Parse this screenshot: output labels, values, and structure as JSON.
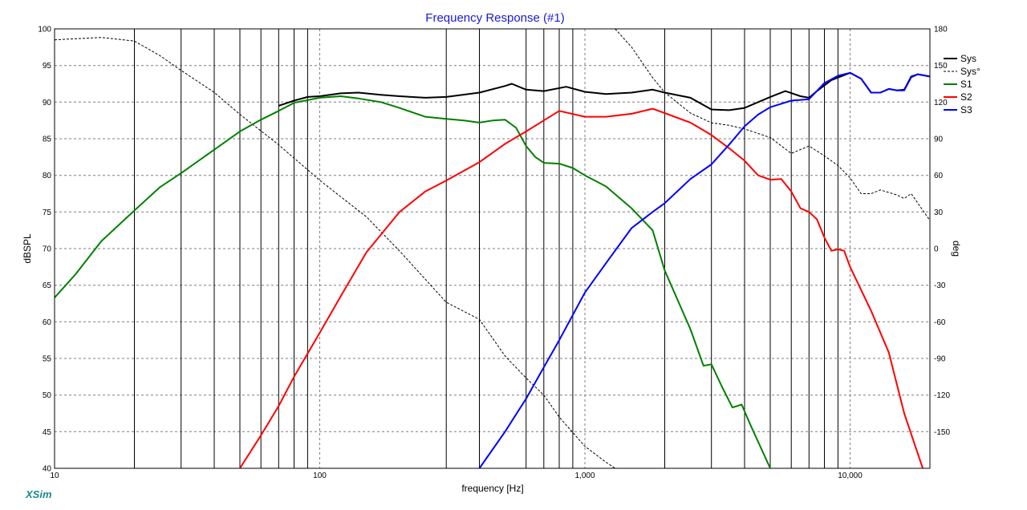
{
  "chart_data": {
    "type": "line",
    "title": "Frequency Response (#1)",
    "xlabel": "frequency [Hz]",
    "ylabel_left": "dBSPL",
    "ylabel_right": "deg",
    "x_scale": "log",
    "xlim": [
      10,
      20000
    ],
    "ylim_left": [
      40,
      100
    ],
    "ylim_right": [
      -180,
      180
    ],
    "grid": true,
    "legend_position": "top-right",
    "x_tick_labels": [
      {
        "value": 10,
        "label": "10"
      },
      {
        "value": 100,
        "label": "100"
      },
      {
        "value": 1000,
        "label": "1,000"
      },
      {
        "value": 10000,
        "label": "10,000"
      }
    ],
    "y_left_ticks": [
      40,
      45,
      50,
      55,
      60,
      65,
      70,
      75,
      80,
      85,
      90,
      95,
      100
    ],
    "y_right_ticks": [
      -150,
      -120,
      -90,
      -60,
      -30,
      0,
      30,
      60,
      90,
      120,
      150,
      180
    ],
    "marker_lines_hz": [
      20,
      30,
      40,
      50,
      60,
      70,
      80,
      90,
      300,
      400,
      600,
      700,
      800,
      900,
      2000,
      3000,
      4000,
      5000,
      6000,
      7000,
      8000,
      9000
    ],
    "series": [
      {
        "name": "Sys",
        "color": "#000000",
        "style": "solid",
        "axis": "left",
        "points": [
          [
            70,
            89.5
          ],
          [
            80,
            90.2
          ],
          [
            90,
            90.7
          ],
          [
            100,
            90.8
          ],
          [
            120,
            91.2
          ],
          [
            140,
            91.3
          ],
          [
            170,
            91.0
          ],
          [
            200,
            90.8
          ],
          [
            250,
            90.6
          ],
          [
            300,
            90.7
          ],
          [
            400,
            91.3
          ],
          [
            500,
            92.2
          ],
          [
            530,
            92.5
          ],
          [
            600,
            91.7
          ],
          [
            700,
            91.5
          ],
          [
            850,
            92.1
          ],
          [
            1000,
            91.4
          ],
          [
            1200,
            91.1
          ],
          [
            1500,
            91.3
          ],
          [
            1800,
            91.7
          ],
          [
            2000,
            91.3
          ],
          [
            2500,
            90.6
          ],
          [
            3000,
            89.0
          ],
          [
            3500,
            88.9
          ],
          [
            4000,
            89.2
          ],
          [
            5000,
            90.7
          ],
          [
            5700,
            91.5
          ],
          [
            6500,
            90.8
          ],
          [
            7000,
            90.6
          ],
          [
            7500,
            91.5
          ],
          [
            8500,
            93.0
          ],
          [
            10000,
            94.0
          ],
          [
            11000,
            93.2
          ],
          [
            12000,
            91.3
          ],
          [
            13000,
            91.3
          ],
          [
            14000,
            91.8
          ],
          [
            15000,
            91.6
          ],
          [
            16000,
            91.7
          ],
          [
            17000,
            93.5
          ],
          [
            18000,
            93.8
          ],
          [
            20000,
            93.5
          ]
        ]
      },
      {
        "name": "Sys°",
        "color": "#000000",
        "style": "dashed",
        "axis": "right",
        "points": [
          [
            10,
            171
          ],
          [
            15,
            173
          ],
          [
            20,
            170
          ],
          [
            25,
            158
          ],
          [
            30,
            146
          ],
          [
            40,
            128
          ],
          [
            50,
            110
          ],
          [
            70,
            85
          ],
          [
            100,
            56
          ],
          [
            150,
            26
          ],
          [
            200,
            -2
          ],
          [
            300,
            -44
          ],
          [
            400,
            -58
          ],
          [
            500,
            -88
          ],
          [
            600,
            -106
          ],
          [
            700,
            -120
          ],
          [
            800,
            -138
          ],
          [
            1000,
            -162
          ],
          [
            1200,
            -175
          ],
          [
            1300,
            -180
          ],
          [
            1300,
            180
          ],
          [
            1500,
            165
          ],
          [
            1800,
            140
          ],
          [
            2000,
            128
          ],
          [
            2500,
            111
          ],
          [
            3000,
            103
          ],
          [
            3500,
            101
          ],
          [
            4000,
            98
          ],
          [
            5000,
            91
          ],
          [
            6000,
            78
          ],
          [
            7000,
            84
          ],
          [
            8000,
            76
          ],
          [
            9000,
            68
          ],
          [
            10000,
            58
          ],
          [
            11000,
            45
          ],
          [
            12000,
            45
          ],
          [
            13000,
            48
          ],
          [
            15000,
            44
          ],
          [
            16000,
            41
          ],
          [
            17000,
            45
          ],
          [
            20000,
            23
          ]
        ]
      },
      {
        "name": "S1",
        "color": "#008000",
        "style": "solid",
        "axis": "left",
        "points": [
          [
            10,
            63.3
          ],
          [
            12,
            66.5
          ],
          [
            15,
            71.0
          ],
          [
            20,
            75.2
          ],
          [
            25,
            78.4
          ],
          [
            30,
            80.3
          ],
          [
            40,
            83.5
          ],
          [
            50,
            86.0
          ],
          [
            60,
            87.6
          ],
          [
            70,
            88.8
          ],
          [
            80,
            89.9
          ],
          [
            100,
            90.6
          ],
          [
            120,
            90.8
          ],
          [
            140,
            90.5
          ],
          [
            170,
            90.0
          ],
          [
            200,
            89.2
          ],
          [
            250,
            88.0
          ],
          [
            300,
            87.7
          ],
          [
            350,
            87.5
          ],
          [
            400,
            87.2
          ],
          [
            450,
            87.5
          ],
          [
            500,
            87.6
          ],
          [
            550,
            86.5
          ],
          [
            600,
            84.0
          ],
          [
            650,
            82.5
          ],
          [
            700,
            81.7
          ],
          [
            800,
            81.6
          ],
          [
            900,
            81.0
          ],
          [
            1000,
            80.0
          ],
          [
            1200,
            78.5
          ],
          [
            1500,
            75.5
          ],
          [
            1800,
            72.5
          ],
          [
            2000,
            67.0
          ],
          [
            2500,
            59.0
          ],
          [
            2800,
            54.0
          ],
          [
            3000,
            54.2
          ],
          [
            3300,
            51.0
          ],
          [
            3600,
            48.3
          ],
          [
            3900,
            48.7
          ],
          [
            4200,
            46.0
          ],
          [
            5000,
            40.0
          ]
        ]
      },
      {
        "name": "S2",
        "color": "#ff0000",
        "style": "solid",
        "axis": "left",
        "points": [
          [
            50,
            40.0
          ],
          [
            60,
            44.5
          ],
          [
            70,
            48.5
          ],
          [
            80,
            52.5
          ],
          [
            100,
            58.5
          ],
          [
            120,
            63.5
          ],
          [
            150,
            69.5
          ],
          [
            200,
            75.0
          ],
          [
            250,
            77.8
          ],
          [
            300,
            79.3
          ],
          [
            400,
            81.8
          ],
          [
            500,
            84.3
          ],
          [
            600,
            86.0
          ],
          [
            700,
            87.5
          ],
          [
            800,
            88.8
          ],
          [
            1000,
            88.0
          ],
          [
            1200,
            88.0
          ],
          [
            1500,
            88.4
          ],
          [
            1800,
            89.1
          ],
          [
            2000,
            88.5
          ],
          [
            2500,
            87.2
          ],
          [
            3000,
            85.5
          ],
          [
            3500,
            83.7
          ],
          [
            4000,
            82.0
          ],
          [
            4500,
            80.0
          ],
          [
            5000,
            79.4
          ],
          [
            5500,
            79.5
          ],
          [
            6000,
            77.8
          ],
          [
            6500,
            75.5
          ],
          [
            7000,
            75.0
          ],
          [
            7500,
            74.0
          ],
          [
            8000,
            71.5
          ],
          [
            8500,
            69.7
          ],
          [
            9000,
            69.9
          ],
          [
            9500,
            69.7
          ],
          [
            10000,
            67.5
          ],
          [
            12000,
            61.5
          ],
          [
            14000,
            55.8
          ],
          [
            16000,
            47.5
          ],
          [
            18000,
            42.0
          ],
          [
            18800,
            40.0
          ]
        ]
      },
      {
        "name": "S3",
        "color": "#0000ff",
        "style": "solid",
        "axis": "left",
        "points": [
          [
            400,
            40.0
          ],
          [
            500,
            45.0
          ],
          [
            600,
            49.5
          ],
          [
            700,
            53.8
          ],
          [
            800,
            57.5
          ],
          [
            1000,
            64.0
          ],
          [
            1200,
            68.0
          ],
          [
            1500,
            72.8
          ],
          [
            1800,
            75.0
          ],
          [
            2000,
            76.2
          ],
          [
            2500,
            79.5
          ],
          [
            3000,
            81.5
          ],
          [
            3500,
            84.2
          ],
          [
            4000,
            86.7
          ],
          [
            4500,
            88.3
          ],
          [
            5000,
            89.3
          ],
          [
            6000,
            90.2
          ],
          [
            7000,
            90.4
          ],
          [
            8000,
            92.6
          ],
          [
            9000,
            93.6
          ],
          [
            10000,
            94.0
          ],
          [
            11000,
            93.2
          ],
          [
            12000,
            91.3
          ],
          [
            13000,
            91.3
          ],
          [
            14000,
            91.8
          ],
          [
            15000,
            91.6
          ],
          [
            16000,
            91.6
          ],
          [
            17000,
            93.4
          ],
          [
            18000,
            93.8
          ],
          [
            20000,
            93.5
          ]
        ]
      }
    ]
  },
  "branding": {
    "logo_text": "XSim"
  }
}
